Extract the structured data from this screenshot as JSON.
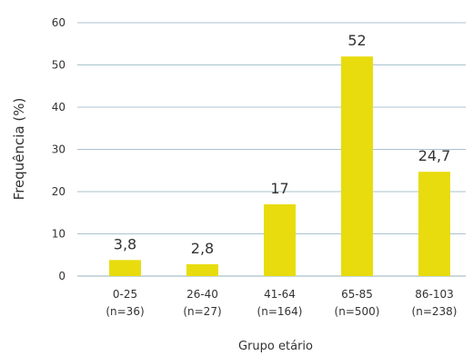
{
  "chart_data": {
    "type": "bar",
    "categories": [
      "0-25",
      "26-40",
      "41-64",
      "65-85",
      "86-103"
    ],
    "category_sublabels": [
      "(n=36)",
      "(n=27)",
      "(n=164)",
      "(n=500)",
      "(n=238)"
    ],
    "values": [
      3.8,
      2.8,
      17,
      52,
      24.7
    ],
    "value_labels": [
      "3,8",
      "2,8",
      "17",
      "52",
      "24,7"
    ],
    "xlabel": "Grupo etário",
    "ylabel": "Frequência (%)",
    "ylim": [
      0,
      60
    ],
    "yticks": [
      0,
      10,
      20,
      30,
      40,
      50,
      60
    ],
    "grid": true,
    "bar_color": "#e8dc0e",
    "grid_color": "#a9c3cf"
  }
}
